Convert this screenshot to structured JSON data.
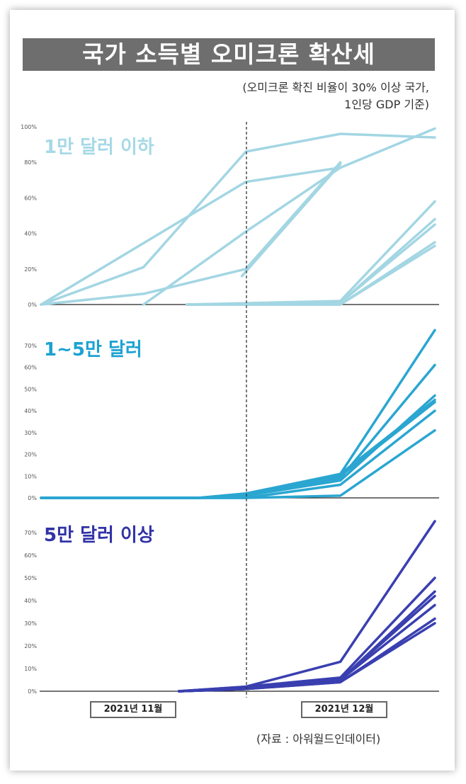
{
  "title": "국가 소득별 오미크론 확산세",
  "subtitle_line1": "(오미크론 확진 비율이 30% 이상 국가,",
  "subtitle_line2": "1인당 GDP 기준)",
  "source": "(자료 : 아워월드인데이터)",
  "x_labels": [
    "2021년 11월",
    "2021년 12월"
  ],
  "chart_data": [
    {
      "type": "line",
      "title": "1만 달러 이하",
      "color": "#a3d6e3",
      "ylim": [
        0,
        100
      ],
      "y_ticks": [
        "0%",
        "20%",
        "40%",
        "60%",
        "80%",
        "100%"
      ],
      "y_tick_values": [
        0,
        20,
        40,
        60,
        80,
        100
      ],
      "x_range": [
        0,
        100
      ],
      "series": [
        {
          "name": "c1",
          "x": [
            0,
            26,
            52,
            76,
            100
          ],
          "y": [
            0,
            21,
            86,
            96,
            94
          ]
        },
        {
          "name": "c2",
          "x": [
            0,
            52,
            76,
            100
          ],
          "y": [
            0,
            69,
            77,
            99
          ]
        },
        {
          "name": "c3",
          "x": [
            0,
            26,
            52,
            76
          ],
          "y": [
            0,
            6,
            20,
            80
          ]
        },
        {
          "name": "c4",
          "x": [
            26,
            52,
            76
          ],
          "y": [
            0,
            41,
            77
          ]
        },
        {
          "name": "c5",
          "x": [
            51,
            76
          ],
          "y": [
            16,
            79
          ]
        },
        {
          "name": "c6",
          "x": [
            37,
            76,
            100
          ],
          "y": [
            0,
            2,
            58
          ]
        },
        {
          "name": "c7",
          "x": [
            37,
            76,
            100
          ],
          "y": [
            0,
            1,
            48
          ]
        },
        {
          "name": "c8",
          "x": [
            37,
            76,
            100
          ],
          "y": [
            0,
            1,
            45
          ]
        },
        {
          "name": "c9",
          "x": [
            37,
            76,
            100
          ],
          "y": [
            0,
            0,
            35
          ]
        },
        {
          "name": "c10",
          "x": [
            37,
            76,
            100
          ],
          "y": [
            0,
            0,
            33
          ]
        }
      ]
    },
    {
      "type": "line",
      "title": "1~5만 달러",
      "color": "#2aa6d1",
      "ylim": [
        0,
        80
      ],
      "y_ticks": [
        "0%",
        "10%",
        "20%",
        "30%",
        "40%",
        "50%",
        "60%",
        "70%"
      ],
      "y_tick_values": [
        0,
        10,
        20,
        30,
        40,
        50,
        60,
        70
      ],
      "x_range": [
        0,
        100
      ],
      "series": [
        {
          "name": "c1",
          "x": [
            0,
            40,
            52,
            76,
            100
          ],
          "y": [
            0,
            0,
            2,
            11,
            77
          ]
        },
        {
          "name": "c2",
          "x": [
            0,
            40,
            52,
            76,
            100
          ],
          "y": [
            0,
            0,
            1,
            9,
            61
          ]
        },
        {
          "name": "c3",
          "x": [
            0,
            40,
            52,
            76,
            100
          ],
          "y": [
            0,
            0,
            1,
            8,
            47
          ]
        },
        {
          "name": "c4",
          "x": [
            0,
            40,
            52,
            76,
            100
          ],
          "y": [
            0,
            0,
            2,
            10,
            44
          ]
        },
        {
          "name": "c5",
          "x": [
            0,
            40,
            52,
            76,
            100
          ],
          "y": [
            0,
            0,
            0,
            6,
            40
          ]
        },
        {
          "name": "c6",
          "x": [
            0,
            40,
            52,
            76,
            100
          ],
          "y": [
            0,
            0,
            0,
            1,
            31
          ]
        },
        {
          "name": "c7",
          "x": [
            0,
            40,
            52,
            76,
            100
          ],
          "y": [
            0,
            0,
            1,
            11,
            45
          ]
        }
      ]
    },
    {
      "type": "line",
      "title": "5만 달러 이상",
      "color": "#3a3fb0",
      "ylim": [
        0,
        80
      ],
      "y_ticks": [
        "0%",
        "10%",
        "20%",
        "30%",
        "40%",
        "50%",
        "60%",
        "70%"
      ],
      "y_tick_values": [
        0,
        10,
        20,
        30,
        40,
        50,
        60,
        70
      ],
      "x_range": [
        0,
        100
      ],
      "series": [
        {
          "name": "c1",
          "x": [
            35,
            52,
            76,
            100
          ],
          "y": [
            0,
            2,
            13,
            75
          ]
        },
        {
          "name": "c2",
          "x": [
            35,
            52,
            76,
            100
          ],
          "y": [
            0,
            2,
            6,
            50
          ]
        },
        {
          "name": "c3",
          "x": [
            35,
            52,
            76,
            100
          ],
          "y": [
            0,
            1,
            5,
            44
          ]
        },
        {
          "name": "c4",
          "x": [
            35,
            52,
            76,
            100
          ],
          "y": [
            0,
            1,
            5,
            42
          ]
        },
        {
          "name": "c5",
          "x": [
            35,
            52,
            76,
            100
          ],
          "y": [
            0,
            1,
            5,
            38
          ]
        },
        {
          "name": "c6",
          "x": [
            35,
            52,
            76,
            100
          ],
          "y": [
            0,
            1,
            4,
            32
          ]
        },
        {
          "name": "c7",
          "x": [
            35,
            52,
            76,
            100
          ],
          "y": [
            0,
            1,
            4,
            30
          ]
        }
      ]
    }
  ]
}
